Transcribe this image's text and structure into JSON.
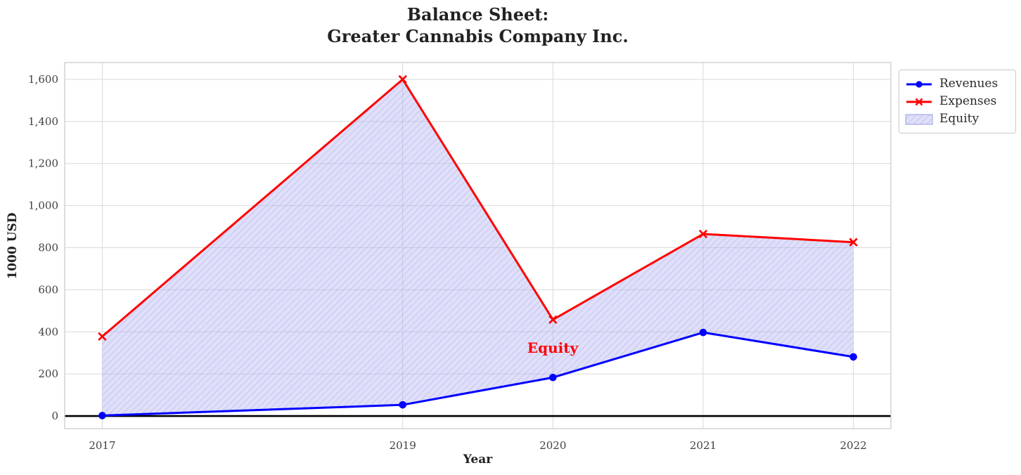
{
  "chart": {
    "title_line1": "Balance Sheet:",
    "title_line2": "Greater Cannabis Company Inc.",
    "chart_data": {
      "type": "line",
      "title": "Balance Sheet: Greater Cannabis Company Inc.",
      "xlabel": "Year",
      "ylabel": "1000 USD",
      "x": [
        2017,
        2019,
        2020,
        2021,
        2022
      ],
      "series": [
        {
          "name": "Revenues",
          "color": "#0000ff",
          "marker": "circle",
          "values": [
            2,
            53,
            183,
            397,
            281
          ]
        },
        {
          "name": "Expenses",
          "color": "#ff0000",
          "marker": "x",
          "values": [
            378,
            1600,
            458,
            865,
            826
          ]
        }
      ],
      "fill_between": {
        "name": "Equity",
        "between": [
          "Expenses",
          "Revenues"
        ],
        "fill_color": "#dfdff8",
        "hatch_color": "#c3c3ef",
        "hatch": "//"
      },
      "annotation": {
        "text": "Equity",
        "x": 2020,
        "y": 325,
        "color": "#ff0000"
      },
      "xlim": [
        2016.75,
        2022.25
      ],
      "ylim": [
        -60,
        1680
      ],
      "xticks": {
        "values": [
          2017,
          2019,
          2020,
          2021,
          2022
        ],
        "labels": [
          "2017",
          "2019",
          "2020",
          "2021",
          "2022"
        ]
      },
      "yticks": {
        "values": [
          0,
          200,
          400,
          600,
          800,
          1000,
          1200,
          1400,
          1600
        ],
        "labels": [
          "0",
          "200",
          "400",
          "600",
          "800",
          "1,000",
          "1,200",
          "1,400",
          "1,600"
        ]
      },
      "grid": true,
      "zero_line": true,
      "legend": {
        "position": "outside-upper-right",
        "entries": [
          "Revenues",
          "Expenses",
          "Equity"
        ]
      }
    }
  }
}
